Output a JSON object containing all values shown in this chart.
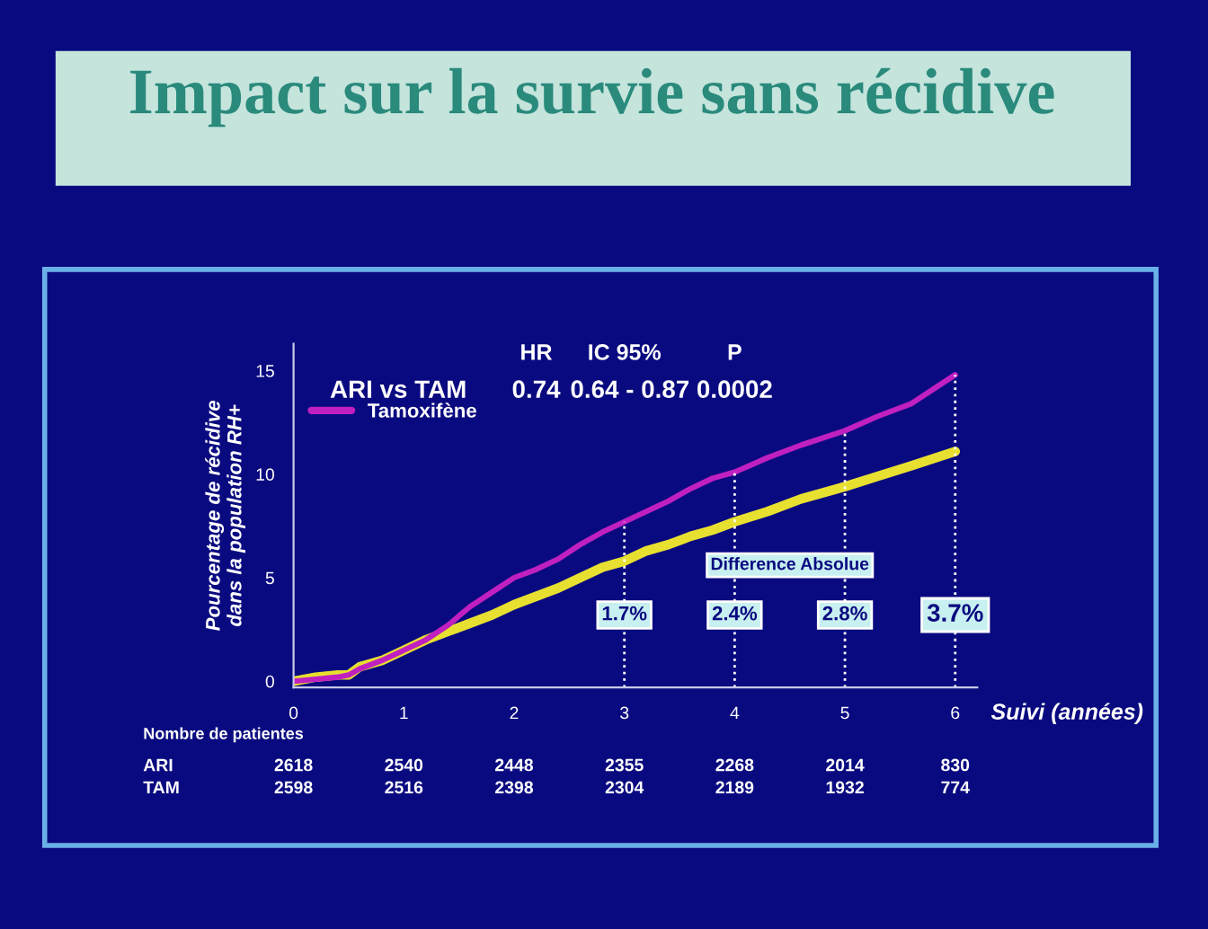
{
  "chart_data": {
    "type": "line",
    "title": "Impact sur la survie sans récidive",
    "xlabel": "Suivi (années)",
    "ylabel": "Pourcentage de récidive\ndans la population RH+",
    "xlim": [
      0,
      6.2
    ],
    "ylim": [
      -0.3,
      16.3
    ],
    "xticks": [
      0,
      1,
      2,
      3,
      4,
      5,
      6
    ],
    "yticks": [
      0,
      5,
      10,
      15
    ],
    "grid": false,
    "legend": "top left",
    "marker": "none",
    "line_style": "solid",
    "series": [
      {
        "color": "#e8e030",
        "x": [
          0,
          0.2,
          0.4,
          0.5,
          0.6,
          0.8,
          1.0,
          1.2,
          1.4,
          1.6,
          1.8,
          2.0,
          2.2,
          2.4,
          2.6,
          2.8,
          3.0,
          3.2,
          3.4,
          3.6,
          3.8,
          4.0,
          4.3,
          4.6,
          5.0,
          5.3,
          5.6,
          6.0
        ],
        "values": [
          0,
          0.2,
          0.3,
          0.3,
          0.7,
          1.0,
          1.5,
          2.0,
          2.4,
          2.8,
          3.2,
          3.7,
          4.1,
          4.5,
          5.0,
          5.5,
          5.8,
          6.3,
          6.6,
          7.0,
          7.3,
          7.7,
          8.2,
          8.8,
          9.4,
          9.9,
          10.4,
          11.1
        ]
      },
      {
        "name": "Tamoxifène",
        "color": "#c020c0",
        "x": [
          0,
          0.2,
          0.4,
          0.5,
          0.6,
          0.8,
          1.0,
          1.2,
          1.4,
          1.6,
          1.8,
          2.0,
          2.2,
          2.4,
          2.6,
          2.8,
          3.0,
          3.2,
          3.4,
          3.6,
          3.8,
          4.0,
          4.3,
          4.6,
          5.0,
          5.3,
          5.6,
          6.0
        ],
        "values": [
          0,
          0.1,
          0.2,
          0.3,
          0.6,
          1.0,
          1.5,
          2.0,
          2.7,
          3.6,
          4.3,
          5.0,
          5.4,
          5.9,
          6.6,
          7.2,
          7.7,
          8.2,
          8.7,
          9.3,
          9.8,
          10.1,
          10.8,
          11.4,
          12.1,
          12.8,
          13.4,
          14.8
        ]
      }
    ],
    "ref_lines": [
      {
        "axis": "x",
        "value": 3,
        "color": "#ffffff",
        "line_style": "dotted"
      },
      {
        "axis": "x",
        "value": 4,
        "color": "#ffffff",
        "line_style": "dotted"
      },
      {
        "axis": "x",
        "value": 5,
        "color": "#ffffff",
        "line_style": "dotted"
      },
      {
        "axis": "x",
        "value": 6,
        "color": "#ffffff",
        "line_style": "dotted"
      }
    ],
    "annotations": [
      {
        "text": "1.7%",
        "x": 3,
        "y": 3.2
      },
      {
        "text": "2.4%",
        "x": 4,
        "y": 3.2
      },
      {
        "text": "2.8%",
        "x": 5,
        "y": 3.2
      },
      {
        "text": "3.7%",
        "x": 6,
        "y": 3.2
      },
      "Difference Absolue",
      "HR",
      "IC 95%",
      "P",
      "ARI vs TAM",
      "0.74",
      "0.64 - 0.87",
      "0.0002",
      "Nombre de patientes",
      "ARI",
      "2618",
      "2540",
      "2448",
      "2355",
      "2268",
      "2014",
      "830",
      "TAM",
      "2598",
      "2516",
      "2398",
      "2304",
      "2189",
      "1932",
      "774"
    ]
  }
}
